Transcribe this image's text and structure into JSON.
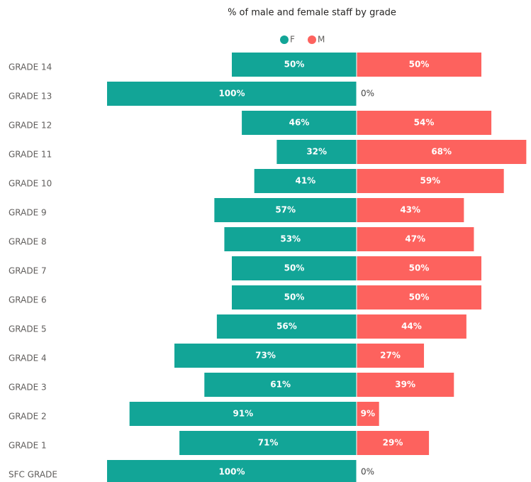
{
  "chart_data": {
    "type": "diverging_bar",
    "title": "% of male and female staff by grade",
    "categories": [
      "GRADE 14",
      "GRADE 13",
      "GRADE 12",
      "GRADE 11",
      "GRADE 10",
      "GRADE 9",
      "GRADE 8",
      "GRADE 7",
      "GRADE 6",
      "GRADE 5",
      "GRADE 4",
      "GRADE 3",
      "GRADE 2",
      "GRADE 1",
      "SFC GRADE"
    ],
    "xlim": [
      0,
      100
    ],
    "legend": "top",
    "series": [
      {
        "name": "F",
        "color": "#12a597",
        "side": "left",
        "values": [
          50,
          100,
          46,
          32,
          41,
          57,
          53,
          50,
          50,
          56,
          73,
          61,
          91,
          71,
          100
        ],
        "value_labels": [
          "50%",
          "100%",
          "46%",
          "32%",
          "41%",
          "57%",
          "53%",
          "50%",
          "50%",
          "56%",
          "73%",
          "61%",
          "91%",
          "71%",
          "100%"
        ]
      },
      {
        "name": "M",
        "color": "#fd625e",
        "side": "right",
        "values": [
          50,
          0,
          54,
          68,
          59,
          43,
          47,
          50,
          50,
          44,
          27,
          39,
          9,
          29,
          0
        ],
        "value_labels": [
          "50%",
          "0%",
          "54%",
          "68%",
          "59%",
          "43%",
          "47%",
          "50%",
          "50%",
          "44%",
          "27%",
          "39%",
          "9%",
          "29%",
          "0%"
        ]
      }
    ]
  }
}
